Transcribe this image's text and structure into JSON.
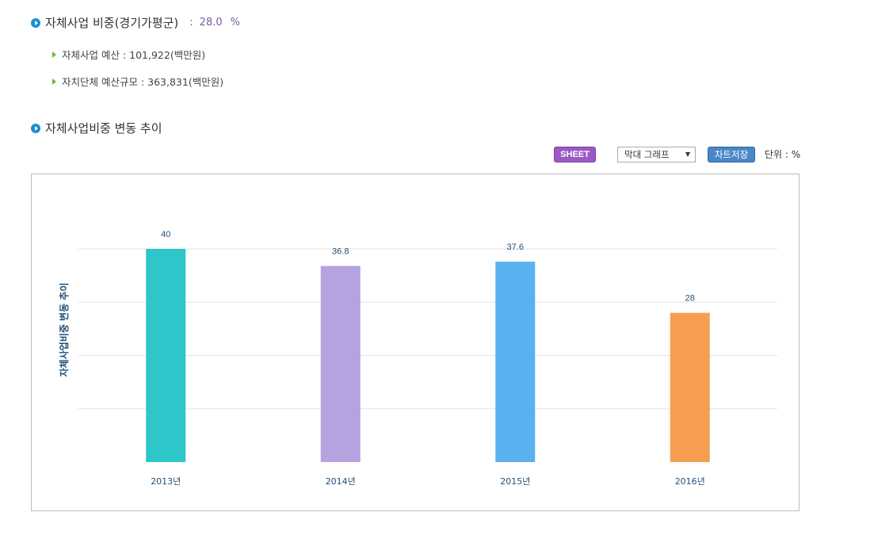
{
  "summary": {
    "title": "자체사업 비중(경기가평군)",
    "separator": ":",
    "value": "28.0",
    "unit": "%",
    "items": [
      {
        "label": "자체사업 예산 : 101,922(백만원)"
      },
      {
        "label": "자치단체 예산규모 : 363,831(백만원)"
      }
    ]
  },
  "trend": {
    "title": "자체사업비중 변동 추이"
  },
  "toolbar": {
    "sheet_label": "SHEET",
    "chart_type_selected": "막대 그래프",
    "save_label": "차트저장",
    "unit_label": "단위 : %"
  },
  "chart_data": {
    "type": "bar",
    "categories": [
      "2013년",
      "2014년",
      "2015년",
      "2016년"
    ],
    "values": [
      40,
      36.8,
      37.6,
      28
    ],
    "value_labels": [
      "40",
      "36.8",
      "37.6",
      "28"
    ],
    "colors": [
      "#2ec6c8",
      "#b5a2de",
      "#5ab1ef",
      "#f59e4f"
    ],
    "ylabel": "자체사업비중 변동 추이",
    "ylim": [
      0,
      40
    ],
    "grid": true,
    "label_color": "#1f4e79"
  }
}
